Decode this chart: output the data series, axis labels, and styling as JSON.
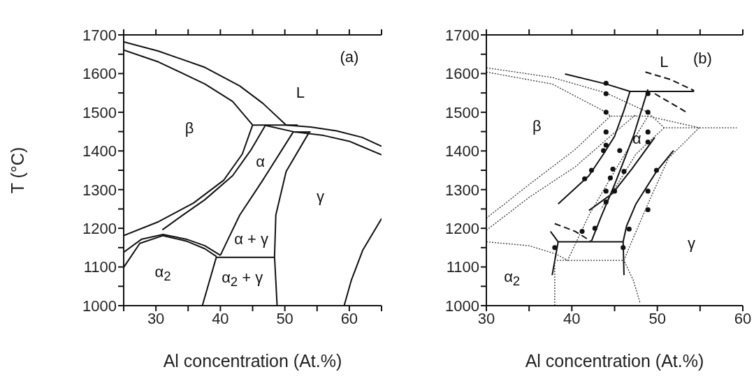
{
  "chart_data": [
    {
      "type": "line",
      "xlabel": "Al concentration (At.%)",
      "ylabel": "T (°C)",
      "xlim": [
        25,
        65
      ],
      "ylim": [
        1000,
        1700
      ],
      "xticks": [
        {
          "value": 25,
          "label": null
        },
        30,
        {
          "value": 35,
          "label": null
        },
        40,
        {
          "value": 45,
          "label": null
        },
        50,
        {
          "value": 55,
          "label": null
        },
        60,
        {
          "value": 65,
          "label": null
        }
      ],
      "yticks": [
        1000,
        {
          "value": 1050,
          "label": null
        },
        1100,
        {
          "value": 1150,
          "label": null
        },
        1200,
        {
          "value": 1250,
          "label": null
        },
        1300,
        {
          "value": 1350,
          "label": null
        },
        1400,
        {
          "value": 1450,
          "label": null
        },
        1500,
        {
          "value": 1550,
          "label": null
        },
        1600,
        {
          "value": 1650,
          "label": null
        },
        1700
      ],
      "line_style": "solid",
      "series": [
        {
          "color": "#111111",
          "x": [
            25,
            30.4,
            37.6,
            43,
            46.6,
            50.2,
            54,
            58,
            62,
            65
          ],
          "values": [
            1682,
            1658,
            1616,
            1568,
            1523,
            1467,
            1462,
            1452,
            1435,
            1412
          ]
        },
        {
          "color": "#111111",
          "x": [
            25,
            30.4,
            37.6,
            41.9,
            45
          ],
          "values": [
            1661,
            1630,
            1573,
            1528,
            1467
          ]
        },
        {
          "color": "#111111",
          "x": [
            45,
            52
          ],
          "values": [
            1467,
            1467
          ]
        },
        {
          "color": "#111111",
          "x": [
            47,
            51.5,
            56,
            60,
            65
          ],
          "values": [
            1466,
            1449,
            1440,
            1425,
            1390
          ]
        },
        {
          "color": "#111111",
          "x": [
            51.3,
            54
          ],
          "values": [
            1449,
            1449
          ]
        },
        {
          "color": "#111111",
          "x": [
            25,
            30.4,
            35.8,
            40.5,
            43.4,
            45
          ],
          "values": [
            1181,
            1217,
            1265,
            1324,
            1392,
            1467
          ]
        },
        {
          "color": "#111111",
          "x": [
            47,
            44.8,
            41.9,
            37.6,
            34,
            31
          ],
          "values": [
            1467,
            1404,
            1336,
            1274,
            1232,
            1196
          ]
        },
        {
          "color": "#111111",
          "x": [
            51.3,
            46.6,
            43,
            41.2,
            40
          ],
          "values": [
            1449,
            1325,
            1234,
            1172,
            1130
          ]
        },
        {
          "color": "#111111",
          "x": [
            53.8,
            50.2,
            48.6,
            48.4,
            48.8
          ],
          "values": [
            1449,
            1347,
            1234,
            1127,
            1000
          ]
        },
        {
          "color": "#111111",
          "x": [
            39.4,
            48.4
          ],
          "values": [
            1125,
            1125
          ]
        },
        {
          "color": "#111111",
          "x": [
            25,
            27.8,
            31.1,
            34.7,
            37.6,
            40
          ],
          "values": [
            1138,
            1172,
            1184,
            1172,
            1155,
            1130
          ]
        },
        {
          "color": "#111111",
          "x": [
            25,
            27.5,
            31.1,
            34.7,
            37.6,
            39.4
          ],
          "values": [
            1099,
            1161,
            1181,
            1167,
            1147,
            1127
          ]
        },
        {
          "color": "#111111",
          "x": [
            39.4,
            37.2
          ],
          "values": [
            1127,
            1000
          ]
        },
        {
          "color": "#111111",
          "x": [
            65,
            62.1,
            60.3,
            59.2
          ],
          "values": [
            1225,
            1144,
            1065,
            1000
          ]
        }
      ],
      "annotations": [
        "(a)",
        "L",
        "β",
        "α",
        "γ",
        "α + γ",
        "α$_{2}$",
        "α$_{2}$ + γ"
      ]
    },
    {
      "type": "line",
      "xlabel": "Al concentration (At.%)",
      "xlim": [
        30,
        60
      ],
      "ylim": [
        1000,
        1700
      ],
      "xticks": [
        30,
        {
          "value": 35,
          "label": null
        },
        40,
        {
          "value": 45,
          "label": null
        },
        50,
        {
          "value": 55,
          "label": null
        },
        60
      ],
      "yticks": [
        1000,
        {
          "value": 1050,
          "label": null
        },
        1100,
        {
          "value": 1150,
          "label": null
        },
        1200,
        {
          "value": 1250,
          "label": null
        },
        1300,
        {
          "value": 1350,
          "label": null
        },
        1400,
        {
          "value": 1450,
          "label": null
        },
        1500,
        {
          "value": 1550,
          "label": null
        },
        1600,
        {
          "value": 1650,
          "label": null
        },
        1700
      ],
      "line_style": "solid",
      "series": [
        {
          "color": "#111111",
          "x": [
            39.2,
            44,
            46.8,
            54.3
          ],
          "values": [
            1599,
            1573,
            1554,
            1554
          ]
        },
        {
          "color": "#111111",
          "line_style": "dashed",
          "x": [
            48.6,
            51.5,
            54.3
          ],
          "values": [
            1604,
            1585,
            1556
          ]
        },
        {
          "color": "#111111",
          "line_style": "dashed",
          "x": [
            49.7,
            51.5,
            53.4
          ],
          "values": [
            1548,
            1525,
            1500
          ]
        },
        {
          "color": "#111111",
          "x": [
            46.8,
            46.1,
            45,
            43.7,
            42,
            38.4
          ],
          "values": [
            1554,
            1505,
            1438,
            1392,
            1336,
            1263
          ]
        },
        {
          "color": "#111111",
          "x": [
            48.9,
            47.2,
            45,
            43.4,
            42.3
          ],
          "values": [
            1559,
            1438,
            1313,
            1229,
            1167
          ]
        },
        {
          "color": "#111111",
          "x": [
            49.7,
            47,
            44.8,
            42
          ],
          "values": [
            1435,
            1353,
            1291,
            1246
          ]
        },
        {
          "color": "#111111",
          "x": [
            51.9,
            49.9,
            47.5,
            46.4,
            46,
            46.1
          ],
          "values": [
            1401,
            1347,
            1263,
            1206,
            1165,
            1079
          ]
        },
        {
          "color": "#111111",
          "x": [
            38.4,
            46
          ],
          "values": [
            1165,
            1165
          ]
        },
        {
          "color": "#111111",
          "x": [
            38.4,
            37.7
          ],
          "values": [
            1165,
            1079
          ]
        },
        {
          "color": "#111111",
          "line_style": "dashed",
          "x": [
            38,
            40.4,
            42.2
          ],
          "values": [
            1212,
            1192,
            1167
          ]
        },
        {
          "color": "#111111",
          "x": [
            37.5,
            38.4
          ],
          "values": [
            1192,
            1165
          ]
        },
        {
          "color": "#333333",
          "line_style": "dotted",
          "x": [
            30,
            37.7,
            44,
            48.9,
            50.8,
            59.3
          ],
          "values": [
            1615,
            1590,
            1550,
            1500,
            1460,
            1460
          ]
        },
        {
          "color": "#333333",
          "line_style": "dotted",
          "x": [
            30,
            37.7,
            44,
            44.5,
            48.9,
            54.9,
            51.3,
            48.9,
            46.7,
            46.1,
            47.2,
            48
          ],
          "values": [
            1604,
            1573,
            1500,
            1490,
            1490,
            1460,
            1381,
            1263,
            1150,
            1117,
            1065,
            1006
          ]
        },
        {
          "color": "#333333",
          "line_style": "dotted",
          "x": [
            30,
            35,
            40.4,
            44.5
          ],
          "values": [
            1226,
            1313,
            1404,
            1490
          ]
        },
        {
          "color": "#333333",
          "line_style": "dotted",
          "x": [
            30,
            35,
            40.4,
            44.5,
            47.5
          ],
          "values": [
            1195,
            1280,
            1359,
            1438,
            1494
          ]
        },
        {
          "color": "#333333",
          "line_style": "dotted",
          "x": [
            30,
            35,
            38.2,
            39.5,
            42,
            45.9,
            48.9
          ],
          "values": [
            1165,
            1155,
            1133,
            1117,
            1234,
            1381,
            1490
          ]
        },
        {
          "color": "#333333",
          "line_style": "dotted",
          "x": [
            38,
            38,
            46.1
          ],
          "values": [
            1000,
            1117,
            1117
          ]
        },
        {
          "color": "#333333",
          "line_style": "dotted",
          "x": [
            50.8,
            47.5,
            45.3,
            43.4
          ],
          "values": [
            1460,
            1392,
            1313,
            1250
          ]
        },
        {
          "type": "scatter",
          "color": "#111111",
          "marker": "circle",
          "x": [
            44,
            44,
            44,
            44,
            48.9,
            48.9,
            48.9,
            48.9,
            44,
            43.7,
            42.3,
            41.5,
            45.6,
            44.8,
            44.5,
            44,
            44,
            45,
            46.1,
            48.9,
            48.9,
            46.7,
            42.7,
            49.9,
            41.2,
            38,
            46
          ],
          "values": [
            1575,
            1548,
            1500,
            1449,
            1548,
            1500,
            1449,
            1423,
            1415,
            1401,
            1350,
            1328,
            1401,
            1353,
            1330,
            1296,
            1268,
            1296,
            1347,
            1296,
            1248,
            1198,
            1200,
            1350,
            1192,
            1150,
            1150
          ]
        }
      ],
      "annotations": [
        "L",
        "(b)",
        "β",
        "α",
        "γ",
        "α$_{2}$"
      ]
    }
  ]
}
